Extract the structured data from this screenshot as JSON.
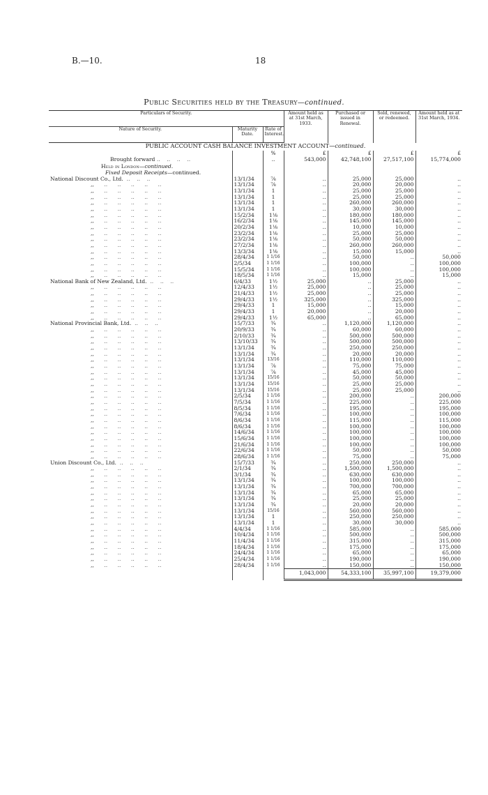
{
  "header": {
    "left": "B.—10.",
    "page_number": "18"
  },
  "title": {
    "main": "Public Securities held by the Treasury",
    "suffix": "—continued."
  },
  "columns": {
    "particulars": "Particulars of Security.",
    "nature": "Nature of Security.",
    "maturity": "Maturity Date.",
    "rate": "Rate of Interest.",
    "held_1933": "Amount held as at 31st March, 1933.",
    "purchased": "Purchased or issued in Renewal.",
    "sold": "Sold, renewed, or redeemed.",
    "held_1934": "Amount held as at 31st March, 1934."
  },
  "section_title": "PUBLIC ACCOUNT CASH BALANCE INVESTMENT ACCOUNT",
  "section_suffix": "—continued.",
  "currency": {
    "rate": "%",
    "pound": "£"
  },
  "brought_forward": {
    "label": "Brought forward",
    "rate": "..",
    "held_1933": "543,000",
    "purchased": "42,748,100",
    "sold": "27,517,100",
    "held_1934": "15,774,000"
  },
  "subheading_1": "Held in London",
  "subheading_1_suffix": "—continued.",
  "subheading_2": "Fixed Deposit Receipts",
  "subheading_2_suffix": "—continued.",
  "rows": [
    {
      "n": "National Discount Co., Ltd.",
      "d": "13/1/34",
      "r": "⅞",
      "a": "..",
      "p": "25,000",
      "s": "25,000",
      "h": ".."
    },
    {
      "n": ",,",
      "d": "13/1/34",
      "r": "⅞",
      "a": "..",
      "p": "20,000",
      "s": "20,000",
      "h": ".."
    },
    {
      "n": ",,",
      "d": "13/1/34",
      "r": "1",
      "a": "..",
      "p": "25,000",
      "s": "25,000",
      "h": ".."
    },
    {
      "n": ",,",
      "d": "13/1/34",
      "r": "1",
      "a": "..",
      "p": "25,000",
      "s": "25,000",
      "h": ".."
    },
    {
      "n": ",,",
      "d": "13/1/34",
      "r": "1",
      "a": "..",
      "p": "260,000",
      "s": "260,000",
      "h": ".."
    },
    {
      "n": ",,",
      "d": "13/1/34",
      "r": "1",
      "a": "..",
      "p": "30,000",
      "s": "30,000",
      "h": ".."
    },
    {
      "n": ",,",
      "d": "15/2/34",
      "r": "1⅛",
      "a": "..",
      "p": "180,000",
      "s": "180,000",
      "h": ".."
    },
    {
      "n": ",,",
      "d": "16/2/34",
      "r": "1⅛",
      "a": "..",
      "p": "145,000",
      "s": "145,000",
      "h": ".."
    },
    {
      "n": ",,",
      "d": "20/2/34",
      "r": "1⅛",
      "a": "..",
      "p": "10,000",
      "s": "10,000",
      "h": ".."
    },
    {
      "n": ",,",
      "d": "23/2/34",
      "r": "1⅛",
      "a": "..",
      "p": "25,000",
      "s": "25,000",
      "h": ".."
    },
    {
      "n": ",,",
      "d": "23/2/34",
      "r": "1⅛",
      "a": "..",
      "p": "50,000",
      "s": "50,000",
      "h": ".."
    },
    {
      "n": ",,",
      "d": "27/2/34",
      "r": "1⅛",
      "a": "..",
      "p": "260,000",
      "s": "260,000",
      "h": ".."
    },
    {
      "n": ",,",
      "d": "13/3/34",
      "r": "1⅛",
      "a": "..",
      "p": "15,000",
      "s": "15,000",
      "h": ".."
    },
    {
      "n": ",,",
      "d": "28/4/34",
      "r": "1 1/16",
      "a": "..",
      "p": "50,000",
      "s": "..",
      "h": "50,000"
    },
    {
      "n": ",,",
      "d": "2/5/34",
      "r": "1 1/16",
      "a": "..",
      "p": "100,000",
      "s": "..",
      "h": "100,000"
    },
    {
      "n": ",,",
      "d": "15/5/34",
      "r": "1 1/16",
      "a": "..",
      "p": "100,000",
      "s": "..",
      "h": "100,000"
    },
    {
      "n": ",,",
      "d": "18/5/34",
      "r": "1 1/16",
      "a": "..",
      "p": "15,000",
      "s": "..",
      "h": "15,000"
    },
    {
      "n": "National Bank of New Zealand, Ltd.",
      "d": "6/4/33",
      "r": "1½",
      "a": "25,000",
      "p": "..",
      "s": "25,000",
      "h": ".."
    },
    {
      "n": ",,",
      "d": "12/4/33",
      "r": "1½",
      "a": "25,000",
      "p": "..",
      "s": "25,000",
      "h": ".."
    },
    {
      "n": ",,",
      "d": "21/4/33",
      "r": "1½",
      "a": "25,000",
      "p": "..",
      "s": "25,000",
      "h": ".."
    },
    {
      "n": ",,",
      "d": "29/4/33",
      "r": "1½",
      "a": "325,000",
      "p": "..",
      "s": "325,000",
      "h": ".."
    },
    {
      "n": ",,",
      "d": "29/4/33",
      "r": "1",
      "a": "15,000",
      "p": "..",
      "s": "15,000",
      "h": ".."
    },
    {
      "n": ",,",
      "d": "29/4/33",
      "r": "1",
      "a": "20,000",
      "p": "..",
      "s": "20,000",
      "h": ".."
    },
    {
      "n": ",,",
      "d": "29/4/33",
      "r": "1½",
      "a": "65,000",
      "p": "..",
      "s": "65,000",
      "h": ".."
    },
    {
      "n": "National Provincial Bank, Ltd.",
      "d": "15/7/33",
      "r": "¾",
      "a": "..",
      "p": "1,120,000",
      "s": "1,120,000",
      "h": ".."
    },
    {
      "n": ",,",
      "d": "20/9/33",
      "r": "¾",
      "a": "..",
      "p": "60,000",
      "s": "60,000",
      "h": ".."
    },
    {
      "n": ",,",
      "d": "2/10/33",
      "r": "¾",
      "a": "..",
      "p": "500,000",
      "s": "500,000",
      "h": ".."
    },
    {
      "n": ",,",
      "d": "13/10/33",
      "r": "¾",
      "a": "..",
      "p": "500,000",
      "s": "500,000",
      "h": ".."
    },
    {
      "n": ",,",
      "d": "13/1/34",
      "r": "¾",
      "a": "..",
      "p": "250,000",
      "s": "250,000",
      "h": ".."
    },
    {
      "n": ",,",
      "d": "13/1/34",
      "r": "¾",
      "a": "..",
      "p": "20,000",
      "s": "20,000",
      "h": ".."
    },
    {
      "n": ",,",
      "d": "13/1/34",
      "r": "13/16",
      "a": "..",
      "p": "110,000",
      "s": "110,000",
      "h": ".."
    },
    {
      "n": ",,",
      "d": "13/1/34",
      "r": "⅞",
      "a": "..",
      "p": "75,000",
      "s": "75,000",
      "h": ".."
    },
    {
      "n": ",,",
      "d": "13/1/34",
      "r": "⅞",
      "a": "..",
      "p": "45,000",
      "s": "45,000",
      "h": ".."
    },
    {
      "n": ",,",
      "d": "13/1/34",
      "r": "15/16",
      "a": "..",
      "p": "50,000",
      "s": "50,000",
      "h": ".."
    },
    {
      "n": ",,",
      "d": "13/1/34",
      "r": "15/16",
      "a": "..",
      "p": "25,000",
      "s": "25,000",
      "h": ".."
    },
    {
      "n": ",,",
      "d": "13/1/34",
      "r": "15/16",
      "a": "..",
      "p": "25,000",
      "s": "25,000",
      "h": ".."
    },
    {
      "n": ",,",
      "d": "2/5/34",
      "r": "1 1/16",
      "a": "..",
      "p": "200,000",
      "s": "..",
      "h": "200,000"
    },
    {
      "n": ",,",
      "d": "7/5/34",
      "r": "1 1/16",
      "a": "..",
      "p": "225,000",
      "s": "..",
      "h": "225,000"
    },
    {
      "n": ",,",
      "d": "8/5/34",
      "r": "1 1/16",
      "a": "..",
      "p": "195,000",
      "s": "..",
      "h": "195,000"
    },
    {
      "n": ",,",
      "d": "7/6/34",
      "r": "1 1/16",
      "a": "..",
      "p": "100,000",
      "s": "..",
      "h": "100,000"
    },
    {
      "n": ",,",
      "d": "8/6/34",
      "r": "1 1/16",
      "a": "..",
      "p": "115,000",
      "s": "..",
      "h": "115,000"
    },
    {
      "n": ",,",
      "d": "8/6/34",
      "r": "1 1/16",
      "a": "..",
      "p": "100,000",
      "s": "..",
      "h": "100,000"
    },
    {
      "n": ",,",
      "d": "14/6/34",
      "r": "1 1/16",
      "a": "..",
      "p": "100,000",
      "s": "..",
      "h": "100,000"
    },
    {
      "n": ",,",
      "d": "15/6/34",
      "r": "1 1/16",
      "a": "..",
      "p": "100,000",
      "s": "..",
      "h": "100,000"
    },
    {
      "n": ",,",
      "d": "21/6/34",
      "r": "1 1/16",
      "a": "..",
      "p": "100,000",
      "s": "..",
      "h": "100,000"
    },
    {
      "n": ",,",
      "d": "22/6/34",
      "r": "1 1/16",
      "a": "..",
      "p": "50,000",
      "s": "..",
      "h": "50,000"
    },
    {
      "n": ",,",
      "d": "28/6/34",
      "r": "1 1/16",
      "a": "..",
      "p": "75,000",
      "s": "..",
      "h": "75,000"
    },
    {
      "n": "Union Discount Co., Ltd.",
      "d": "15/7/33",
      "r": "¾",
      "a": "..",
      "p": "250,000",
      "s": "250,000",
      "h": ".."
    },
    {
      "n": ",,",
      "d": "2/1/34",
      "r": "¾",
      "a": "..",
      "p": "1,500,000",
      "s": "1,500,000",
      "h": ".."
    },
    {
      "n": ",,",
      "d": "3/1/34",
      "r": "¾",
      "a": "..",
      "p": "630,000",
      "s": "630,000",
      "h": ".."
    },
    {
      "n": ",,",
      "d": "13/1/34",
      "r": "¾",
      "a": "..",
      "p": "100,000",
      "s": "100,000",
      "h": ".."
    },
    {
      "n": ",,",
      "d": "13/1/34",
      "r": "¾",
      "a": "..",
      "p": "700,000",
      "s": "700,000",
      "h": ".."
    },
    {
      "n": ",,",
      "d": "13/1/34",
      "r": "¾",
      "a": "..",
      "p": "65,000",
      "s": "65,000",
      "h": ".."
    },
    {
      "n": ",,",
      "d": "13/1/34",
      "r": "¾",
      "a": "..",
      "p": "25,000",
      "s": "25,000",
      "h": ".."
    },
    {
      "n": ",,",
      "d": "13/1/34",
      "r": "¾",
      "a": "..",
      "p": "20,000",
      "s": "20,000",
      "h": ".."
    },
    {
      "n": ",,",
      "d": "13/1/34",
      "r": "15/16",
      "a": "..",
      "p": "560,000",
      "s": "560,000",
      "h": ".."
    },
    {
      "n": ",,",
      "d": "13/1/34",
      "r": "1",
      "a": "..",
      "p": "250,000",
      "s": "250,000",
      "h": ".."
    },
    {
      "n": ",,",
      "d": "13/1/34",
      "r": "1",
      "a": "..",
      "p": "30,000",
      "s": "30,000",
      "h": ".."
    },
    {
      "n": ",,",
      "d": "4/4/34",
      "r": "1 1/16",
      "a": "..",
      "p": "585,000",
      "s": "..",
      "h": "585,000"
    },
    {
      "n": ",,",
      "d": "10/4/34",
      "r": "1 1/16",
      "a": "..",
      "p": "500,000",
      "s": "..",
      "h": "500,000"
    },
    {
      "n": ",,",
      "d": "11/4/34",
      "r": "1 1/16",
      "a": "..",
      "p": "315,000",
      "s": "..",
      "h": "315,000"
    },
    {
      "n": ",,",
      "d": "18/4/34",
      "r": "1 1/16",
      "a": "..",
      "p": "175,000",
      "s": "..",
      "h": "175,000"
    },
    {
      "n": ",,",
      "d": "24/4/34",
      "r": "1 1/16",
      "a": "..",
      "p": "65,000",
      "s": "..",
      "h": "65,000"
    },
    {
      "n": ",,",
      "d": "25/4/34",
      "r": "1 1/16",
      "a": "..",
      "p": "190,000",
      "s": "..",
      "h": "190,000"
    },
    {
      "n": ",,",
      "d": "28/4/34",
      "r": "1 1/16",
      "a": "..",
      "p": "150,000",
      "s": "..",
      "h": "150,000"
    }
  ],
  "totals": {
    "held_1933": "1,043,000",
    "purchased": "54,333,100",
    "sold": "35,997,100",
    "held_1934": "19,379,000"
  }
}
